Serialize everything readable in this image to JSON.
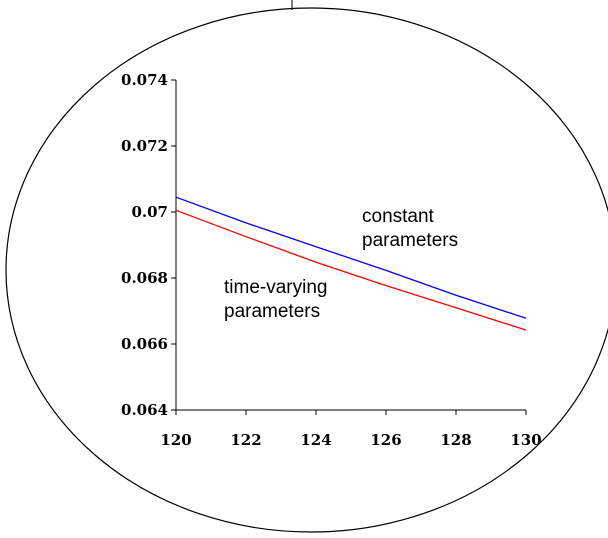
{
  "chart_data": {
    "type": "line",
    "title": "",
    "xlabel": "",
    "ylabel": "",
    "xlim": [
      120,
      130
    ],
    "ylim": [
      0.064,
      0.074
    ],
    "x_ticks": [
      120,
      122,
      124,
      126,
      128,
      130
    ],
    "y_ticks": [
      0.064,
      0.066,
      0.068,
      0.07,
      0.072,
      0.074
    ],
    "x_tick_labels": [
      "120",
      "122",
      "124",
      "126",
      "128",
      "130"
    ],
    "y_tick_labels": [
      "0.064",
      "0.066",
      "0.068",
      "0.07",
      "0.072",
      "0.074"
    ],
    "grid": false,
    "legend": "none",
    "series": [
      {
        "name": "constant parameters",
        "color": "#0000ff",
        "x": [
          120,
          122,
          124,
          126,
          128,
          130
        ],
        "y": [
          0.07045,
          0.06967,
          0.06895,
          0.06823,
          0.06748,
          0.06678
        ]
      },
      {
        "name": "time-varying parameters",
        "color": "#ff0000",
        "x": [
          120,
          122,
          124,
          126,
          128,
          130
        ],
        "y": [
          0.07005,
          0.06925,
          0.06848,
          0.06777,
          0.0671,
          0.06642
        ]
      }
    ],
    "annotations": [
      {
        "lines": [
          "constant",
          "parameters"
        ],
        "series": 0
      },
      {
        "lines": [
          "time-varying",
          "parameters"
        ],
        "series": 1
      }
    ]
  }
}
